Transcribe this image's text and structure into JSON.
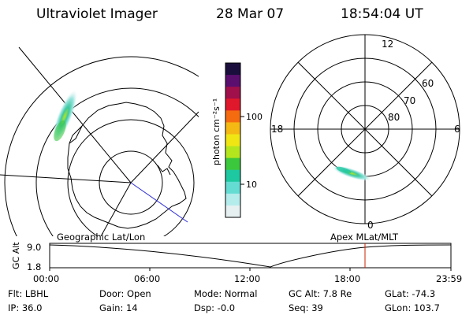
{
  "header": {
    "title": "Ultraviolet Imager",
    "date": "28 Mar 07",
    "time": "18:54:04 UT"
  },
  "colorbar": {
    "label": "photon cm⁻²s⁻¹",
    "ticks": [
      "100",
      "10"
    ],
    "colors": [
      "#1a0f3c",
      "#5a0f6e",
      "#a0104a",
      "#e0182c",
      "#f56c10",
      "#f5b914",
      "#f0e614",
      "#b4e61e",
      "#3cc83c",
      "#1ec8a0",
      "#64dcd2",
      "#b4ebeb",
      "#e6f0f0"
    ]
  },
  "left_map": {
    "title": "Geographic Lat/Lon"
  },
  "right_map": {
    "title": "Apex MLat/MLT",
    "hour_labels": [
      "12",
      "18",
      "6",
      "0"
    ],
    "lat_labels": [
      "60",
      "70",
      "80"
    ]
  },
  "timeline": {
    "axis_label": "GC Alt",
    "y_top": "9.0",
    "y_bottom": "1.8",
    "ticks": [
      "00:00",
      "06:00",
      "12:00",
      "18:00",
      "23:59"
    ],
    "marker_color": "#cc2200"
  },
  "footer": {
    "flt": "Flt: LBHL",
    "ip": "IP: 36.0",
    "door": "Door: Open",
    "gain": "Gain: 14",
    "mode": "Mode: Normal",
    "dsp": "Dsp:    -0.0",
    "gcalt": "GC Alt: 7.8 Re",
    "seq": "Seq: 39",
    "glat": "GLat: -74.3",
    "glon": "GLon: 103.7"
  }
}
